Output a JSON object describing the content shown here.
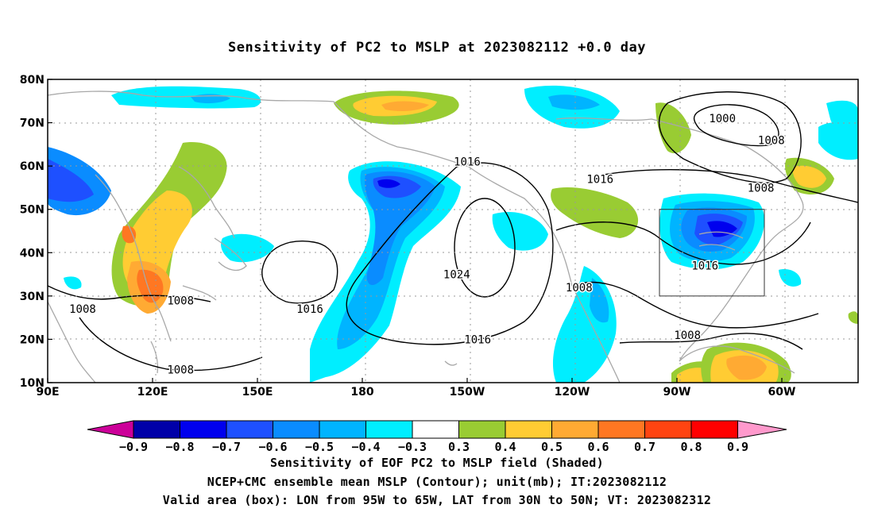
{
  "title": "Sensitivity of PC2 to MSLP at 2023082112 +0.0 day",
  "map": {
    "lat_labels": [
      "80N",
      "70N",
      "60N",
      "50N",
      "40N",
      "30N",
      "20N",
      "10N"
    ],
    "lon_labels": [
      "90E",
      "120E",
      "150E",
      "180",
      "150W",
      "120W",
      "90W",
      "60W"
    ],
    "valid_box": {
      "lon": [
        "95W",
        "65W"
      ],
      "lat": [
        "30N",
        "50N"
      ]
    },
    "contour_labels": [
      {
        "text": "1000",
        "lon": -77,
        "lat": 71
      },
      {
        "text": "1008",
        "lon": -63,
        "lat": 66
      },
      {
        "text": "1016",
        "lon": -150,
        "lat": 61
      },
      {
        "text": "1016",
        "lon": -112,
        "lat": 57
      },
      {
        "text": "1008",
        "lon": -66,
        "lat": 55
      },
      {
        "text": "1024",
        "lon": -153,
        "lat": 35
      },
      {
        "text": "1016",
        "lon": 165,
        "lat": 27
      },
      {
        "text": "1016",
        "lon": -147,
        "lat": 20
      },
      {
        "text": "1008",
        "lon": -118,
        "lat": 32
      },
      {
        "text": "1016",
        "lon": -82,
        "lat": 37
      },
      {
        "text": "1008",
        "lon": -87,
        "lat": 21
      },
      {
        "text": "1008",
        "lon": 100,
        "lat": 27
      },
      {
        "text": "1008",
        "lon": 128,
        "lat": 29
      },
      {
        "text": "1008",
        "lon": 128,
        "lat": 13
      }
    ]
  },
  "colorbar": {
    "colors": [
      "#cc0099",
      "#0000a8",
      "#0000ee",
      "#1e50ff",
      "#0a8cff",
      "#00b4ff",
      "#00eeff",
      "#ffffff",
      "#99cc33",
      "#ffcc33",
      "#ffaa33",
      "#ff7722",
      "#ff4411",
      "#ff0000",
      "#ff99cc"
    ],
    "labels": [
      "−0.9",
      "−0.8",
      "−0.7",
      "−0.6",
      "−0.5",
      "−0.4",
      "−0.3",
      "0.3",
      "0.4",
      "0.5",
      "0.6",
      "0.7",
      "0.8",
      "0.9"
    ]
  },
  "captions": {
    "line1": "Sensitivity of EOF PC2 to MSLP field (Shaded)",
    "line2": "NCEP+CMC ensemble mean MSLP (Contour); unit(mb); IT:2023082112",
    "line3": "Valid area (box): LON from 95W to 65W, LAT from 30N to 50N; VT: 2023082312"
  }
}
